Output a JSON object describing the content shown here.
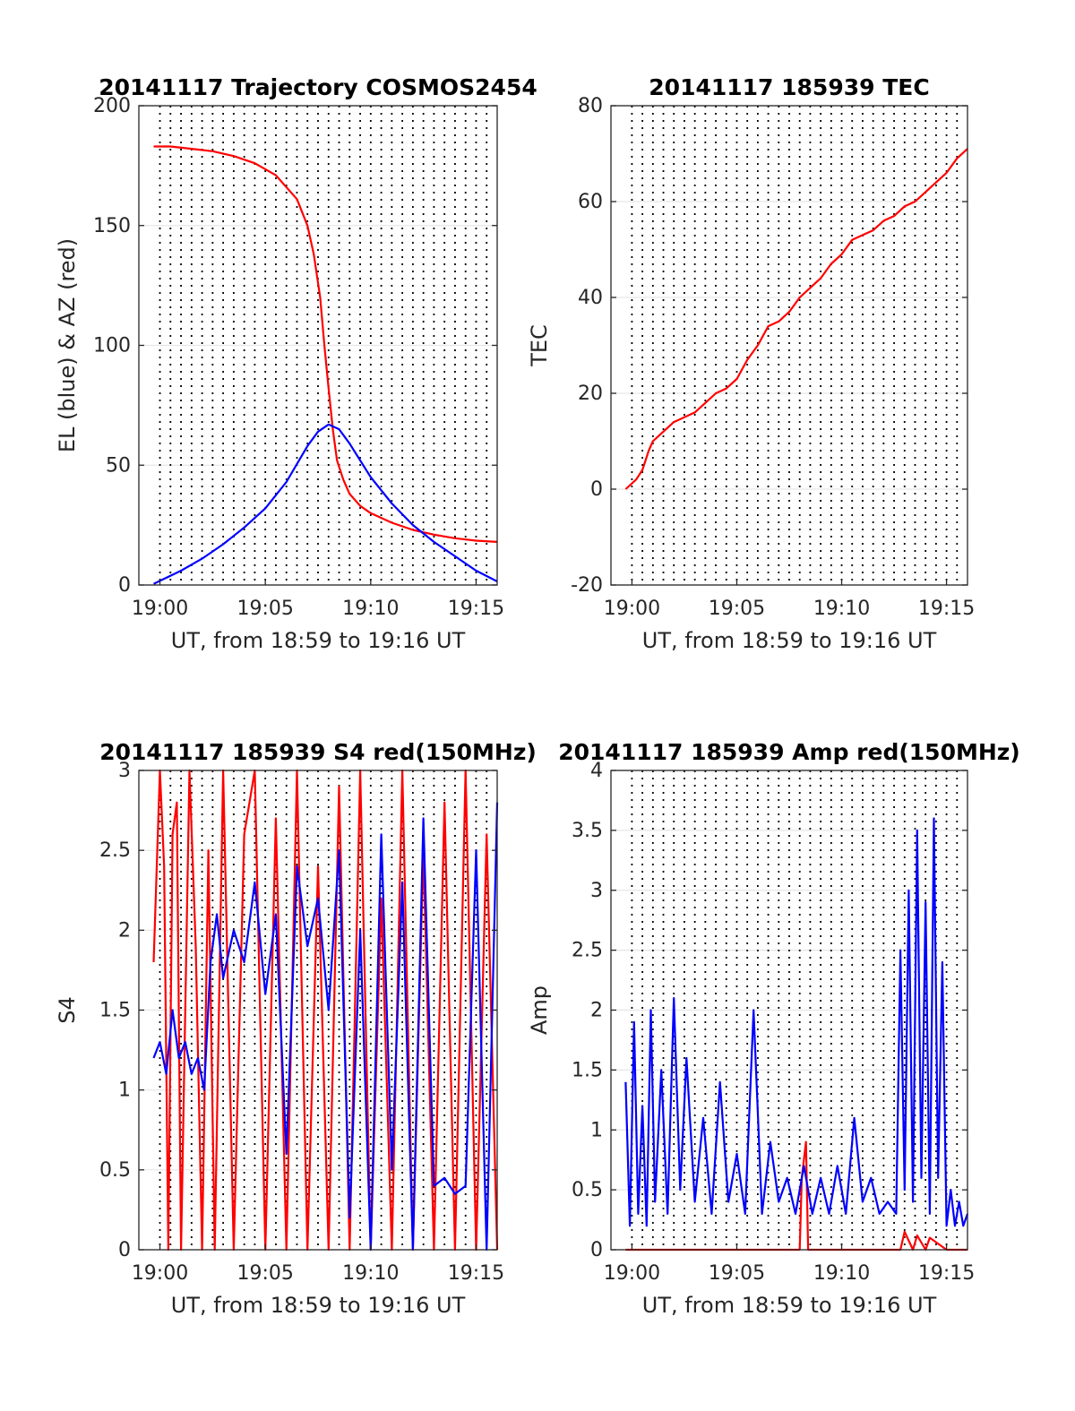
{
  "chart_data": [
    {
      "type": "line",
      "title": "20141117 Trajectory COSMOS2454",
      "xlabel": "UT, from 18:59 to 19:16 UT",
      "ylabel": "EL (blue) & AZ (red)",
      "xlim": [
        18.99,
        19.16
      ],
      "xtick_values": [
        19.0,
        19.05,
        19.1,
        19.15
      ],
      "xtick_labels": [
        "19:00",
        "19:05",
        "19:10",
        "19:15"
      ],
      "ylim": [
        0,
        200
      ],
      "yticks": [
        0,
        50,
        100,
        150,
        200
      ],
      "grid": true,
      "series": [
        {
          "color": "#ff0000",
          "x": [
            18.997,
            19.005,
            19.015,
            19.025,
            19.035,
            19.045,
            19.055,
            19.065,
            19.07,
            19.073,
            19.076,
            19.078,
            19.08,
            19.082,
            19.084,
            19.087,
            19.09,
            19.095,
            19.1,
            19.11,
            19.12,
            19.13,
            19.14,
            19.15,
            19.16
          ],
          "y": [
            183,
            183,
            182,
            181,
            179,
            176,
            171,
            161,
            150,
            138,
            120,
            100,
            82,
            65,
            52,
            44,
            38,
            33,
            30,
            26,
            23,
            21,
            19.5,
            18.5,
            18
          ]
        },
        {
          "color": "#0000ff",
          "x": [
            18.997,
            19.01,
            19.02,
            19.03,
            19.04,
            19.05,
            19.06,
            19.07,
            19.075,
            19.08,
            19.085,
            19.09,
            19.1,
            19.11,
            19.12,
            19.13,
            19.14,
            19.15,
            19.16
          ],
          "y": [
            0.5,
            6,
            11,
            17,
            24,
            32,
            43,
            58,
            64,
            67,
            65,
            59,
            45,
            34,
            25,
            18,
            12,
            6,
            1.5
          ]
        }
      ]
    },
    {
      "type": "line",
      "title": "20141117 185939 TEC",
      "xlabel": "UT, from 18:59 to 19:16 UT",
      "ylabel": "TEC",
      "xlim": [
        18.99,
        19.16
      ],
      "xtick_values": [
        19.0,
        19.05,
        19.1,
        19.15
      ],
      "xtick_labels": [
        "19:00",
        "19:05",
        "19:10",
        "19:15"
      ],
      "ylim": [
        -20,
        80
      ],
      "yticks": [
        -20,
        0,
        20,
        40,
        60,
        80
      ],
      "grid": true,
      "series": [
        {
          "color": "#ff0000",
          "x": [
            18.997,
            19.002,
            19.005,
            19.008,
            19.01,
            19.015,
            19.02,
            19.025,
            19.03,
            19.035,
            19.04,
            19.045,
            19.05,
            19.055,
            19.06,
            19.065,
            19.07,
            19.075,
            19.08,
            19.085,
            19.09,
            19.095,
            19.1,
            19.105,
            19.11,
            19.115,
            19.12,
            19.125,
            19.13,
            19.135,
            19.14,
            19.145,
            19.15,
            19.155,
            19.16
          ],
          "y": [
            0,
            2,
            4,
            8,
            10,
            12,
            14,
            15,
            16,
            18,
            20,
            21,
            23,
            27,
            30,
            34,
            35,
            37,
            40,
            42,
            44,
            47,
            49,
            52,
            53,
            54,
            56,
            57,
            59,
            60,
            62,
            64,
            66,
            69,
            71
          ]
        }
      ]
    },
    {
      "type": "line",
      "title": "20141117 185939 S4 red(150MHz)",
      "xlabel": "UT, from 18:59 to 19:16 UT",
      "ylabel": "S4",
      "xlim": [
        18.99,
        19.16
      ],
      "xtick_values": [
        19.0,
        19.05,
        19.1,
        19.15
      ],
      "xtick_labels": [
        "19:00",
        "19:05",
        "19:10",
        "19:15"
      ],
      "ylim": [
        0,
        3
      ],
      "yticks": [
        0,
        0.5,
        1,
        1.5,
        2,
        2.5,
        3
      ],
      "ytick_labels": [
        "0",
        "0.5",
        "1",
        "1.5",
        "2",
        "2.5",
        "3"
      ],
      "grid": true,
      "series": [
        {
          "color": "#ff0000",
          "x": [
            18.997,
            19.0,
            19.002,
            19.004,
            19.006,
            19.008,
            19.01,
            19.014,
            19.017,
            19.02,
            19.023,
            19.026,
            19.03,
            19.035,
            19.04,
            19.045,
            19.05,
            19.055,
            19.06,
            19.065,
            19.07,
            19.075,
            19.08,
            19.085,
            19.09,
            19.095,
            19.1,
            19.105,
            19.11,
            19.115,
            19.12,
            19.125,
            19.13,
            19.135,
            19.14,
            19.145,
            19.15,
            19.155,
            19.16
          ],
          "y": [
            1.8,
            3,
            2.4,
            0,
            2.6,
            2.8,
            0,
            3,
            1.9,
            0,
            2.5,
            0,
            3,
            0,
            2.6,
            3,
            0,
            2.7,
            0,
            3,
            0,
            2.4,
            0,
            2.9,
            0,
            3,
            0,
            2.2,
            0,
            3,
            0,
            2.5,
            0,
            2.8,
            0,
            3,
            0,
            2.6,
            0
          ]
        },
        {
          "color": "#0000ff",
          "x": [
            18.997,
            19.0,
            19.003,
            19.006,
            19.009,
            19.012,
            19.015,
            19.018,
            19.021,
            19.024,
            19.027,
            19.03,
            19.035,
            19.04,
            19.045,
            19.05,
            19.055,
            19.06,
            19.065,
            19.07,
            19.075,
            19.08,
            19.085,
            19.09,
            19.095,
            19.1,
            19.105,
            19.11,
            19.115,
            19.12,
            19.125,
            19.13,
            19.135,
            19.14,
            19.145,
            19.15,
            19.155,
            19.16
          ],
          "y": [
            1.2,
            1.3,
            1.1,
            1.5,
            1.2,
            1.3,
            1.1,
            1.2,
            1.0,
            1.8,
            2.1,
            1.7,
            2.0,
            1.8,
            2.3,
            1.6,
            2.1,
            0.6,
            2.4,
            1.9,
            2.2,
            1.5,
            2.5,
            0.2,
            2.0,
            0,
            2.6,
            0.5,
            2.3,
            0,
            2.7,
            0.4,
            0.45,
            0.35,
            0.4,
            2.5,
            0,
            2.8
          ]
        }
      ]
    },
    {
      "type": "line",
      "title": "20141117 185939 Amp red(150MHz)",
      "xlabel": "UT, from 18:59 to 19:16 UT",
      "ylabel": "Amp",
      "xlim": [
        18.99,
        19.16
      ],
      "xtick_values": [
        19.0,
        19.05,
        19.1,
        19.15
      ],
      "xtick_labels": [
        "19:00",
        "19:05",
        "19:10",
        "19:15"
      ],
      "ylim": [
        0,
        4
      ],
      "yticks": [
        0,
        0.5,
        1,
        1.5,
        2,
        2.5,
        3,
        3.5,
        4
      ],
      "ytick_labels": [
        "0",
        "0.5",
        "1",
        "1.5",
        "2",
        "2.5",
        "3",
        "3.5",
        "4"
      ],
      "grid": true,
      "series": [
        {
          "color": "#ff0000",
          "x": [
            18.997,
            19.05,
            19.08,
            19.081,
            19.083,
            19.084,
            19.1,
            19.128,
            19.13,
            19.134,
            19.136,
            19.14,
            19.142,
            19.15,
            19.16
          ],
          "y": [
            0,
            0,
            0,
            0.6,
            0.9,
            0,
            0,
            0,
            0.15,
            0,
            0.12,
            0,
            0.1,
            0,
            0
          ]
        },
        {
          "color": "#0000ff",
          "x": [
            18.997,
            18.999,
            19.001,
            19.003,
            19.005,
            19.007,
            19.009,
            19.011,
            19.014,
            19.017,
            19.02,
            19.023,
            19.026,
            19.03,
            19.034,
            19.038,
            19.042,
            19.046,
            19.05,
            19.054,
            19.058,
            19.062,
            19.066,
            19.07,
            19.074,
            19.078,
            19.082,
            19.086,
            19.09,
            19.094,
            19.098,
            19.102,
            19.106,
            19.11,
            19.114,
            19.118,
            19.122,
            19.126,
            19.128,
            19.13,
            19.132,
            19.134,
            19.136,
            19.138,
            19.14,
            19.142,
            19.144,
            19.146,
            19.148,
            19.15,
            19.152,
            19.154,
            19.156,
            19.158,
            19.16
          ],
          "y": [
            1.4,
            0.2,
            1.9,
            0.3,
            1.2,
            0.2,
            2.0,
            0.4,
            1.5,
            0.3,
            2.1,
            0.5,
            1.6,
            0.4,
            1.1,
            0.3,
            1.4,
            0.4,
            0.8,
            0.3,
            2.0,
            0.3,
            0.9,
            0.4,
            0.6,
            0.3,
            0.7,
            0.3,
            0.6,
            0.3,
            0.7,
            0.3,
            1.1,
            0.4,
            0.6,
            0.3,
            0.4,
            0.3,
            2.5,
            0.5,
            3.0,
            0.4,
            3.5,
            0.6,
            2.9,
            0.3,
            3.6,
            0.6,
            2.4,
            0.2,
            0.5,
            0.2,
            0.4,
            0.2,
            0.3
          ]
        }
      ]
    }
  ]
}
